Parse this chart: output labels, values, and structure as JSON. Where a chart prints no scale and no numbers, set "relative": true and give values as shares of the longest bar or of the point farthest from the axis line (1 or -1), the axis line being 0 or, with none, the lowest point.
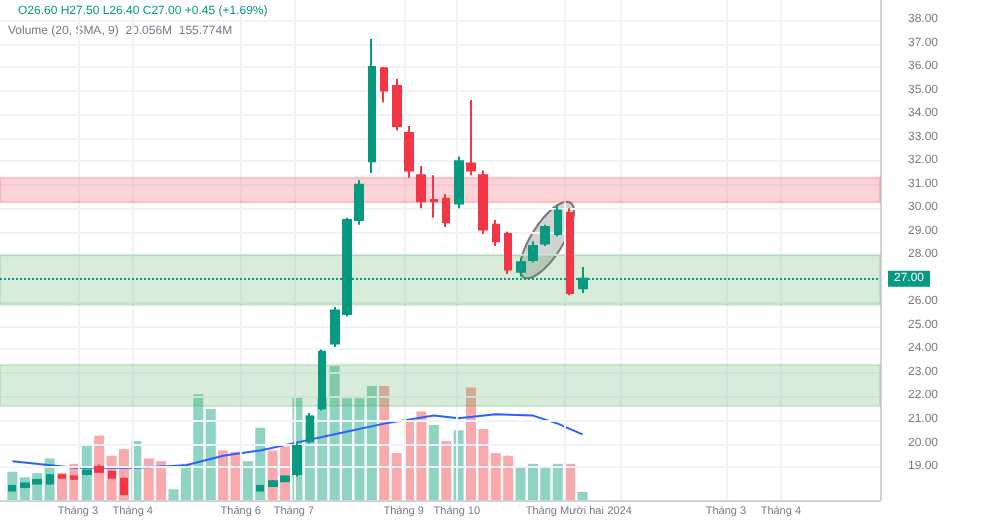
{
  "chart_data": [
    {
      "type": "candlestick",
      "subtitle": "O26.60 H27.50 L26.40 C27.00 +0.45 (+1.69%)",
      "x": [
        "2023-01-23",
        "2023-01-30",
        "2023-02-06",
        "2023-02-13",
        "2023-02-20",
        "2023-02-27",
        "2023-03-06",
        "2023-03-13",
        "2023-03-20",
        "2023-03-27",
        "2023-06-12",
        "2023-06-19",
        "2023-06-26",
        "2023-07-03",
        "2023-07-10",
        "2023-07-17",
        "2023-07-24",
        "2023-07-31",
        "2023-08-07",
        "2023-08-14",
        "2023-08-21",
        "2023-08-28",
        "2023-09-04",
        "2023-09-11",
        "2023-09-18",
        "2023-09-25",
        "2023-10-02",
        "2023-10-09",
        "2023-10-16",
        "2023-10-23",
        "2023-10-30",
        "2023-11-06",
        "2023-11-13",
        "2023-11-20",
        "2023-11-27",
        "2023-12-04",
        "2023-12-11"
      ],
      "ohlc": [
        [
          18.0,
          18.25,
          17.95,
          18.2
        ],
        [
          18.15,
          18.35,
          18.1,
          18.3
        ],
        [
          18.3,
          18.5,
          18.25,
          18.45
        ],
        [
          18.3,
          18.7,
          18.25,
          18.65
        ],
        [
          18.65,
          18.7,
          18.5,
          18.55
        ],
        [
          18.6,
          18.65,
          18.45,
          18.5
        ],
        [
          18.7,
          18.9,
          18.65,
          18.85
        ],
        [
          19.0,
          19.1,
          18.75,
          18.8
        ],
        [
          18.8,
          18.85,
          18.5,
          18.55
        ],
        [
          18.5,
          18.55,
          17.8,
          17.85
        ],
        [
          18.0,
          18.25,
          17.95,
          18.2
        ],
        [
          18.2,
          18.45,
          18.15,
          18.4
        ],
        [
          18.4,
          18.65,
          18.35,
          18.6
        ],
        [
          18.7,
          20.0,
          18.6,
          19.9
        ],
        [
          20.1,
          21.3,
          20.0,
          21.15
        ],
        [
          21.5,
          24.0,
          21.4,
          23.9
        ],
        [
          24.25,
          25.8,
          24.1,
          25.65
        ],
        [
          25.5,
          29.6,
          25.4,
          29.5
        ],
        [
          29.5,
          31.2,
          29.3,
          31.0
        ],
        [
          32.0,
          37.2,
          31.5,
          36.0
        ],
        [
          35.95,
          36.0,
          34.5,
          35.0
        ],
        [
          35.2,
          35.5,
          33.3,
          33.5
        ],
        [
          33.2,
          33.5,
          31.3,
          31.6
        ],
        [
          31.4,
          31.8,
          30.0,
          30.3
        ],
        [
          30.35,
          31.4,
          29.6,
          30.3
        ],
        [
          30.4,
          30.6,
          29.2,
          29.4
        ],
        [
          30.2,
          32.2,
          30.0,
          32.0
        ],
        [
          31.9,
          34.6,
          31.4,
          31.6
        ],
        [
          31.4,
          31.6,
          28.9,
          29.1
        ],
        [
          29.3,
          29.5,
          28.4,
          28.6
        ],
        [
          28.9,
          29.0,
          27.2,
          27.4
        ],
        [
          27.3,
          27.9,
          27.1,
          27.7
        ],
        [
          27.8,
          28.6,
          27.7,
          28.4
        ],
        [
          28.5,
          29.3,
          28.4,
          29.2
        ],
        [
          28.9,
          30.1,
          28.8,
          29.9
        ],
        [
          29.8,
          30.0,
          26.3,
          26.4
        ],
        [
          26.6,
          27.5,
          26.4,
          27.0
        ]
      ],
      "colors": [
        "#089981",
        "#089981",
        "#089981",
        "#089981",
        "#f23645",
        "#f23645",
        "#089981",
        "#f23645",
        "#f23645",
        "#f23645",
        "#089981",
        "#089981",
        "#089981",
        "#089981",
        "#089981",
        "#089981",
        "#089981",
        "#089981",
        "#089981",
        "#089981",
        "#f23645",
        "#f23645",
        "#f23645",
        "#f23645",
        "#f23645",
        "#f23645",
        "#089981",
        "#f23645",
        "#f23645",
        "#f23645",
        "#f23645",
        "#089981",
        "#089981",
        "#089981",
        "#089981",
        "#f23645",
        "#089981"
      ],
      "xlim": [
        "2023-01-16",
        "2024-05-27"
      ],
      "xticks": [
        {
          "value": "2023-03-01",
          "label": null
        },
        {
          "value": "2023-04-01",
          "label": null
        },
        {
          "value": "2023-06-01",
          "label": null
        },
        {
          "value": "2023-07-01",
          "label": null
        },
        {
          "value": "2023-09-01",
          "label": null
        },
        {
          "value": "2023-10-01",
          "label": null
        },
        {
          "value": "2023-12-01",
          "label": null
        },
        {
          "value": "2024-01-01",
          "label": null
        },
        {
          "value": "2024-03-01",
          "label": null
        },
        {
          "value": "2024-04-01",
          "label": null
        }
      ],
      "tick_labels": "y",
      "ylim": [
        17.6,
        38.85
      ],
      "yticks": [
        {
          "value": 19,
          "label": "19.00"
        },
        {
          "value": 20,
          "label": "20.00"
        },
        {
          "value": 21,
          "label": "21.00"
        },
        {
          "value": 22,
          "label": "22.00"
        },
        {
          "value": 23,
          "label": "23.00"
        },
        {
          "value": 24,
          "label": "24.00"
        },
        {
          "value": 25,
          "label": "25.00"
        },
        {
          "value": 26,
          "label": "26.00"
        },
        {
          "value": 28,
          "label": "28.00"
        },
        {
          "value": 29,
          "label": "29.00"
        },
        {
          "value": 30,
          "label": "30.00"
        },
        {
          "value": 31,
          "label": "31.00"
        },
        {
          "value": 32,
          "label": "32.00"
        },
        {
          "value": 33,
          "label": "33.00"
        },
        {
          "value": 34,
          "label": "34.00"
        },
        {
          "value": 35,
          "label": "35.00"
        },
        {
          "value": 36,
          "label": "36.00"
        },
        {
          "value": 37,
          "label": "37.00"
        },
        {
          "value": 38,
          "label": "38.00"
        }
      ],
      "ref_lines": [
        {
          "axis": "y",
          "value": 27,
          "label": "27.00",
          "color": "#089981",
          "line_style": "dotted"
        }
      ],
      "bands": [
        {
          "axis": "y",
          "from": 30.25,
          "to": 31.3,
          "color": "#f23645"
        },
        {
          "axis": "y",
          "from": 25.9,
          "to": 28.0,
          "color": "#4caf50"
        },
        {
          "axis": "y",
          "from": 21.6,
          "to": 23.35,
          "color": "#4caf50"
        }
      ],
      "grid": true
    },
    {
      "type": "bar",
      "title": "Volume (20, SMA, 9)",
      "annotations": [
        "20.056M",
        "155.774M"
      ],
      "relative": true,
      "tick_labels": "x",
      "x": [
        "2023-01-23",
        "2023-01-30",
        "2023-02-06",
        "2023-02-13",
        "2023-02-20",
        "2023-02-27",
        "2023-03-06",
        "2023-03-13",
        "2023-03-20",
        "2023-03-27",
        "2023-04-03",
        "2023-04-10",
        "2023-04-17",
        "2023-04-24",
        "2023-05-01",
        "2023-05-08",
        "2023-05-15",
        "2023-05-22",
        "2023-05-29",
        "2023-06-05",
        "2023-06-12",
        "2023-06-19",
        "2023-06-26",
        "2023-07-03",
        "2023-07-10",
        "2023-07-17",
        "2023-07-24",
        "2023-07-31",
        "2023-08-07",
        "2023-08-14",
        "2023-08-21",
        "2023-08-28",
        "2023-09-04",
        "2023-09-11",
        "2023-09-18",
        "2023-09-25",
        "2023-10-02",
        "2023-10-09",
        "2023-10-16",
        "2023-10-23",
        "2023-10-30",
        "2023-11-06",
        "2023-11-13",
        "2023-11-20",
        "2023-11-27",
        "2023-12-04",
        "2023-12-11"
      ],
      "xlim": [
        "2023-01-16",
        "2024-05-27"
      ],
      "xticks": [
        {
          "value": "2023-03-01",
          "label": "Tháng 3"
        },
        {
          "value": "2023-04-01",
          "label": "Tháng 4"
        },
        {
          "value": "2023-06-01",
          "label": "Tháng 6"
        },
        {
          "value": "2023-07-01",
          "label": "Tháng 7"
        },
        {
          "value": "2023-09-01",
          "label": "Tháng 9"
        },
        {
          "value": "2023-10-01",
          "label": "Tháng 10"
        },
        {
          "value": "2023-12-01",
          "label": "Tháng Mười hai"
        },
        {
          "value": "2024-01-01",
          "label": "2024"
        },
        {
          "value": "2024-03-01",
          "label": "Tháng 3"
        },
        {
          "value": "2024-04-01",
          "label": "Tháng 4"
        }
      ],
      "series": [
        {
          "type": "bar",
          "values": [
            0.21,
            0.17,
            0.2,
            0.31,
            0.2,
            0.27,
            0.41,
            0.48,
            0.33,
            0.38,
            0.44,
            0.31,
            0.29,
            0.08,
            0.27,
            0.79,
            0.68,
            0.37,
            0.36,
            0.29,
            0.54,
            0.37,
            0.4,
            0.77,
            0.63,
            0.76,
            1,
            0.76,
            0.76,
            0.85,
            0.85,
            0.35,
            0.59,
            0.66,
            0.56,
            0.44,
            0.52,
            0.84,
            0.53,
            0.35,
            0.33,
            0.24,
            0.27,
            0.24,
            0.27,
            0.27,
            0.06
          ],
          "colors": [
            "#8fd3c3",
            "#8fd3c3",
            "#8fd3c3",
            "#8fd3c3",
            "#f7a9ab",
            "#f7a9ab",
            "#8fd3c3",
            "#f7a9ab",
            "#f7a9ab",
            "#f7a9ab",
            "#8fd3c3",
            "#f7a9ab",
            "#f7a9ab",
            "#8fd3c3",
            "#8fd3c3",
            "#8fd3c3",
            "#8fd3c3",
            "#f7a9ab",
            "#f7a9ab",
            "#8fd3c3",
            "#8fd3c3",
            "#f7a9ab",
            "#f7a9ab",
            "#8fd3c3",
            "#8fd3c3",
            "#8fd3c3",
            "#8fd3c3",
            "#8fd3c3",
            "#8fd3c3",
            "#8fd3c3",
            "#f7a9ab",
            "#f7a9ab",
            "#f7a9ab",
            "#f7a9ab",
            "#8fd3c3",
            "#f7a9ab",
            "#8fd3c3",
            "#f7a9ab",
            "#f7a9ab",
            "#f7a9ab",
            "#f7a9ab",
            "#8fd3c3",
            "#8fd3c3",
            "#8fd3c3",
            "#8fd3c3",
            "#f7a9ab",
            "#8fd3c3"
          ]
        },
        {
          "type": "line",
          "color": "#2962ff",
          "marker": "none",
          "x": [
            "2023-01-23",
            "2023-02-27",
            "2023-04-03",
            "2023-05-01",
            "2023-05-22",
            "2023-06-12",
            "2023-07-03",
            "2023-07-24",
            "2023-08-21",
            "2023-09-18",
            "2023-10-02",
            "2023-10-23",
            "2023-11-13",
            "2023-11-27",
            "2023-12-11"
          ],
          "values": [
            0.29,
            0.24,
            0.24,
            0.26,
            0.33,
            0.37,
            0.43,
            0.49,
            0.57,
            0.63,
            0.61,
            0.64,
            0.63,
            0.57,
            0.49
          ]
        }
      ]
    }
  ]
}
